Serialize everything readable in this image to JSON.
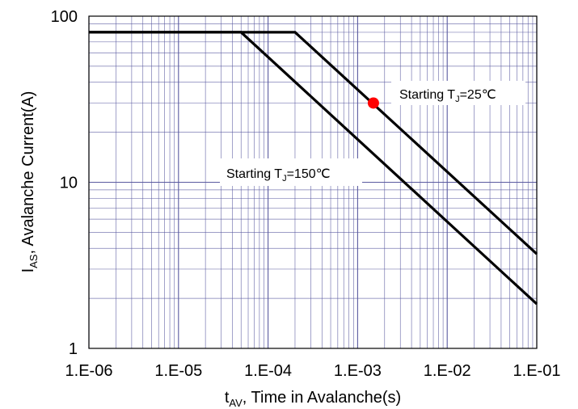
{
  "chart_data": {
    "type": "line",
    "title": "",
    "xlabel": "t",
    "xlabel_sub": "AV",
    "xlabel_rest": ", Time in Avalanche(s)",
    "ylabel": "I",
    "ylabel_sub": "AS",
    "ylabel_rest": ", Avalanche Current(A)",
    "x_scale": "log",
    "y_scale": "log",
    "xlim": [
      1e-06,
      0.1
    ],
    "ylim": [
      1,
      100
    ],
    "x_ticks": [
      1e-06,
      1e-05,
      0.0001,
      0.001,
      0.01,
      0.1
    ],
    "x_tick_labels": [
      "1.E-06",
      "1.E-05",
      "1.E-04",
      "1.E-03",
      "1.E-02",
      "1.E-01"
    ],
    "y_ticks": [
      1,
      10,
      100
    ],
    "y_tick_labels": [
      "1",
      "10",
      "100"
    ],
    "grid": true,
    "colors": {
      "series": "#000000",
      "grid": "#5a5aa0",
      "marker": "#ff0000"
    },
    "series": [
      {
        "id": "tj25",
        "points": [
          [
            1e-06,
            80
          ],
          [
            0.0002,
            80
          ],
          [
            0.1,
            3.7
          ]
        ]
      },
      {
        "id": "tj150",
        "points": [
          [
            1e-06,
            80
          ],
          [
            5e-05,
            80
          ],
          [
            0.1,
            1.85
          ]
        ]
      }
    ],
    "marker": {
      "x": 0.0015,
      "y": 30
    },
    "annotations": [
      {
        "id": "tj25",
        "prefix": "Starting T",
        "sub": "J",
        "suffix": "=25℃"
      },
      {
        "id": "tj150",
        "prefix": "Starting T",
        "sub": "J",
        "suffix": "=150℃"
      }
    ]
  }
}
